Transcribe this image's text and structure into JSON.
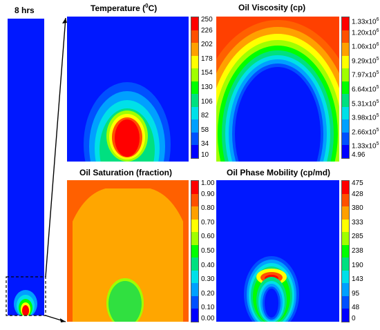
{
  "time_label": "8 hrs",
  "colors": {
    "ramp": [
      "#0000ff",
      "#0050ff",
      "#00a0ff",
      "#00e0e8",
      "#00e080",
      "#00ff00",
      "#a0ff00",
      "#ffff00",
      "#ffa000",
      "#ff5000",
      "#ff0000"
    ],
    "saturation_field": "#ffa600",
    "saturation_edge": "#ff6000",
    "saturation_center": "#30e040",
    "deep_blue": "#0018ff"
  },
  "panels": {
    "temperature": {
      "title": "Temperature (",
      "title_sup": "0",
      "title_tail": "C)",
      "ticks": [
        "250",
        "226",
        "202",
        "178",
        "154",
        "130",
        "106",
        "82",
        "58",
        "34",
        "10"
      ]
    },
    "viscosity": {
      "title": "Oil Viscosity (cp)",
      "ticks": [
        {
          "base": "1.33x10",
          "exp": "6"
        },
        {
          "base": "1.20x10",
          "exp": "6"
        },
        {
          "base": "1.06x10",
          "exp": "6"
        },
        {
          "base": "9.29x10",
          "exp": "5"
        },
        {
          "base": "7.97x10",
          "exp": "5"
        },
        {
          "base": "6.64x10",
          "exp": "5"
        },
        {
          "base": "5.31x10",
          "exp": "5"
        },
        {
          "base": "3.98x10",
          "exp": "5"
        },
        {
          "base": "2.66x10",
          "exp": "5"
        },
        {
          "base": "1.33x10",
          "exp": "5"
        },
        {
          "base": "4.96",
          "exp": ""
        }
      ]
    },
    "saturation": {
      "title": "Oil Saturation (fraction)",
      "ticks": [
        "1.00",
        "0.90",
        "0.80",
        "0.70",
        "0.60",
        "0.50",
        "0.40",
        "0.30",
        "0.20",
        "0.10",
        "0.00"
      ]
    },
    "mobility": {
      "title": "Oil Phase Mobility (cp/md)",
      "ticks": [
        "475",
        "428",
        "380",
        "333",
        "285",
        "238",
        "190",
        "143",
        "95",
        "48",
        "0"
      ]
    }
  }
}
